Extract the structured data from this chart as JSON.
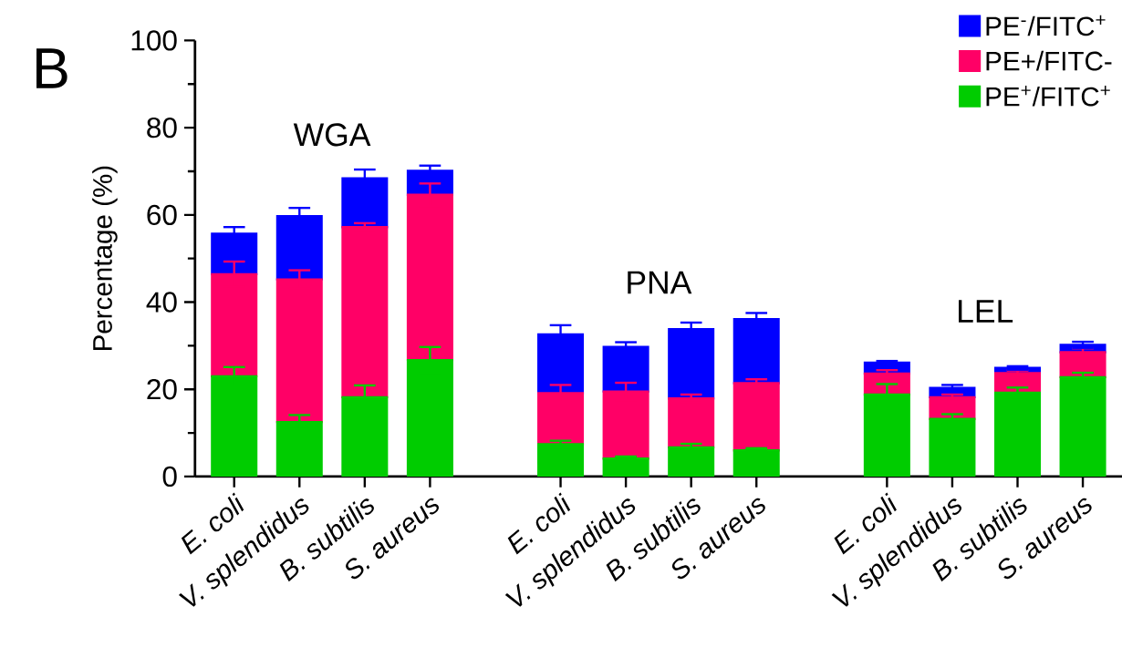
{
  "chart_data": {
    "type": "bar",
    "stacked": true,
    "categories": [
      "E. coli",
      "V. splendidus",
      "B. subtilis",
      "S. aureus",
      null,
      "E. coli",
      "V. splendidus",
      "B. subtilis",
      "S. aureus",
      null,
      "E. coli",
      "V. splendidus",
      "B. subtilis",
      "S. aureus"
    ],
    "ylabel": "Percentage (%)",
    "ylim": [
      0,
      100
    ],
    "yticks": [
      0,
      20,
      40,
      60,
      80,
      100
    ],
    "series": [
      {
        "name": "PE$^{+}$/FITC$^{+}$",
        "color": "#00cc00",
        "values": [
          23.0,
          12.5,
          18.2,
          26.7,
          null,
          7.4,
          4.1,
          6.7,
          6.0,
          null,
          18.8,
          13.2,
          19.2,
          22.8
        ],
        "errors": [
          2.1,
          1.6,
          2.7,
          3.0,
          null,
          0.8,
          0.5,
          0.8,
          0.5,
          null,
          2.4,
          1.1,
          1.2,
          1.0
        ]
      },
      {
        "name": "PE+/FITC-",
        "color": "#ff0066",
        "values": [
          23.4,
          32.7,
          39.0,
          37.9,
          null,
          11.7,
          15.4,
          11.2,
          15.4,
          null,
          4.8,
          5.0,
          4.5,
          5.7
        ],
        "errors": [
          2.9,
          2.1,
          0.9,
          2.6,
          null,
          1.9,
          2.0,
          0.9,
          0.9,
          null,
          0.8,
          0.6,
          0.6,
          0.9
        ]
      },
      {
        "name": "PE$^{-}$/FITC$^{+}$",
        "color": "#0000ff",
        "values": [
          9.3,
          14.5,
          11.2,
          5.5,
          null,
          13.5,
          10.2,
          15.9,
          14.7,
          null,
          2.5,
          2.1,
          1.2,
          1.7
        ],
        "errors": [
          1.5,
          1.9,
          2.0,
          1.2,
          null,
          2.1,
          1.1,
          1.5,
          1.4,
          null,
          0.4,
          0.7,
          0.4,
          0.7
        ]
      }
    ],
    "legend": "top right",
    "annotations": [
      "B",
      "WGA",
      "PNA",
      "LEL"
    ]
  }
}
